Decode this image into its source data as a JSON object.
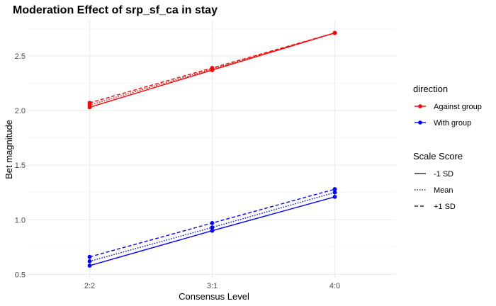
{
  "chart_data": {
    "type": "line",
    "title": "Moderation Effect of srp_sf_ca in stay",
    "xlabel": "Consensus Level",
    "ylabel": "Bet magnitude",
    "categories": [
      "2:2",
      "3:1",
      "4:0"
    ],
    "ylim": [
      0.47,
      2.83
    ],
    "yticks": [
      0.5,
      1.0,
      1.5,
      2.0,
      2.5
    ],
    "ytick_labels": [
      "0.5",
      "1.0",
      "1.5",
      "2.0",
      "2.5"
    ],
    "grid": true,
    "legend_position": "right",
    "legend": {
      "direction_title": "direction",
      "direction_items": [
        {
          "label": "Against group",
          "color": "#ff0000"
        },
        {
          "label": "With group",
          "color": "#0000ff"
        }
      ],
      "scale_title": "Scale Score",
      "scale_items": [
        {
          "label": "-1 SD",
          "dash": "solid"
        },
        {
          "label": "Mean",
          "dash": "dotted"
        },
        {
          "label": "+1 SD",
          "dash": "dashed"
        }
      ]
    },
    "series": [
      {
        "direction": "Against group",
        "scale": "-1 SD",
        "color": "#ff0000",
        "dash": "solid",
        "values": [
          2.03,
          2.37,
          2.71
        ]
      },
      {
        "direction": "Against group",
        "scale": "Mean",
        "color": "#ff0000",
        "dash": "dotted",
        "values": [
          2.05,
          2.38,
          2.71
        ]
      },
      {
        "direction": "Against group",
        "scale": "+1 SD",
        "color": "#ff0000",
        "dash": "dashed",
        "values": [
          2.07,
          2.39,
          2.71
        ]
      },
      {
        "direction": "With group",
        "scale": "-1 SD",
        "color": "#0000ff",
        "dash": "solid",
        "values": [
          0.58,
          0.9,
          1.21
        ]
      },
      {
        "direction": "With group",
        "scale": "Mean",
        "color": "#0000ff",
        "dash": "dotted",
        "values": [
          0.62,
          0.93,
          1.25
        ]
      },
      {
        "direction": "With group",
        "scale": "+1 SD",
        "color": "#0000ff",
        "dash": "dashed",
        "values": [
          0.66,
          0.97,
          1.28
        ]
      }
    ]
  }
}
